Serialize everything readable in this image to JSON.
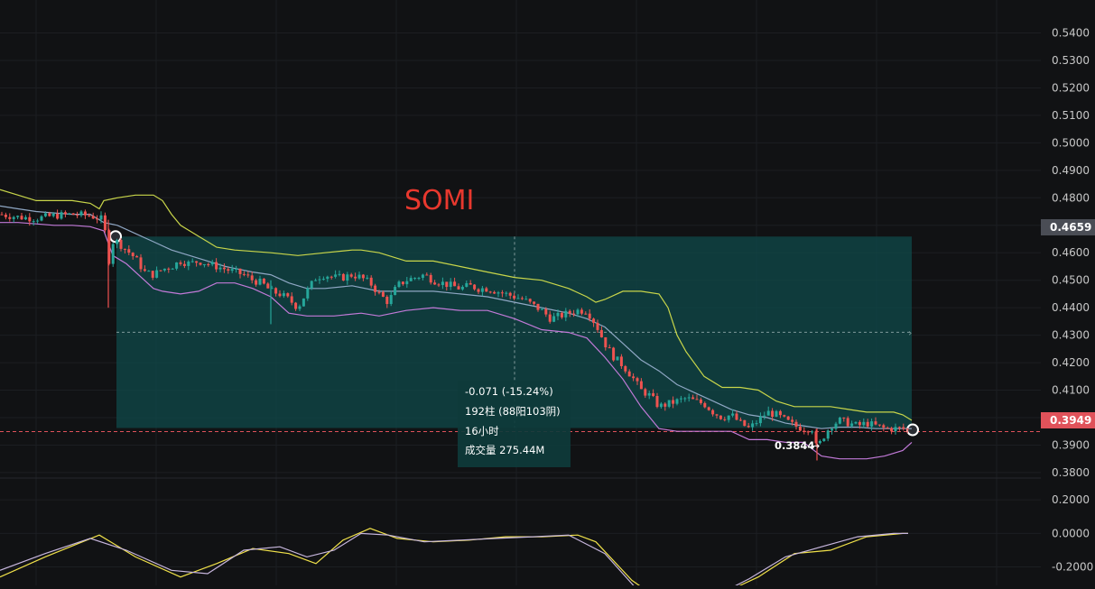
{
  "chart_data": [
    {
      "type": "candlestick",
      "title": "SOMI",
      "ylim": [
        0.378,
        0.552
      ],
      "y_ticks": [
        "0.5400",
        "0.5300",
        "0.5200",
        "0.5100",
        "0.5000",
        "0.4900",
        "0.4800",
        "0.4700",
        "0.4600",
        "0.4500",
        "0.4400",
        "0.4300",
        "0.4200",
        "0.4100",
        "0.4000",
        "0.3900",
        "0.3800"
      ],
      "current_price": "0.3949",
      "measure_top_price": "0.4659",
      "low_label": "0.3844",
      "measurement": {
        "change": "-0.071 (-15.24%)",
        "bars": "192柱 (88阳103阴)",
        "duration": "16小时",
        "volume": "成交量 275.44M"
      },
      "colors": {
        "up": "#26a69a",
        "down": "#ef5350",
        "upper_band": "#c9d64a",
        "middle_band": "#8fa7c4",
        "lower_band": "#c27ad8",
        "measure_fill": "#0f4a49",
        "current_line": "#e0525a"
      },
      "price_path": [
        [
          0,
          0.474
        ],
        [
          20,
          0.473
        ],
        [
          40,
          0.4725
        ],
        [
          60,
          0.4735
        ],
        [
          80,
          0.474
        ],
        [
          100,
          0.4735
        ],
        [
          115,
          0.472
        ],
        [
          120,
          0.456
        ],
        [
          125,
          0.464
        ],
        [
          130,
          0.464
        ],
        [
          140,
          0.461
        ],
        [
          150,
          0.458
        ],
        [
          160,
          0.453
        ],
        [
          170,
          0.452
        ],
        [
          180,
          0.454
        ],
        [
          190,
          0.455
        ],
        [
          200,
          0.457
        ],
        [
          210,
          0.456
        ],
        [
          220,
          0.457
        ],
        [
          230,
          0.456
        ],
        [
          240,
          0.455
        ],
        [
          250,
          0.454
        ],
        [
          260,
          0.453
        ],
        [
          270,
          0.452
        ],
        [
          280,
          0.45
        ],
        [
          290,
          0.449
        ],
        [
          300,
          0.446
        ],
        [
          310,
          0.445
        ],
        [
          320,
          0.443
        ],
        [
          330,
          0.44
        ],
        [
          340,
          0.446
        ],
        [
          350,
          0.451
        ],
        [
          360,
          0.452
        ],
        [
          370,
          0.451
        ],
        [
          380,
          0.451
        ],
        [
          390,
          0.452
        ],
        [
          400,
          0.451
        ],
        [
          410,
          0.449
        ],
        [
          420,
          0.445
        ],
        [
          430,
          0.442
        ],
        [
          440,
          0.448
        ],
        [
          450,
          0.45
        ],
        [
          460,
          0.451
        ],
        [
          470,
          0.452
        ],
        [
          480,
          0.45
        ],
        [
          490,
          0.449
        ],
        [
          500,
          0.448
        ],
        [
          510,
          0.447
        ],
        [
          520,
          0.448
        ],
        [
          530,
          0.447
        ],
        [
          540,
          0.447
        ],
        [
          550,
          0.446
        ],
        [
          560,
          0.445
        ],
        [
          570,
          0.444
        ],
        [
          580,
          0.443
        ],
        [
          590,
          0.441
        ],
        [
          600,
          0.439
        ],
        [
          610,
          0.436
        ],
        [
          620,
          0.437
        ],
        [
          630,
          0.438
        ],
        [
          640,
          0.439
        ],
        [
          650,
          0.439
        ],
        [
          660,
          0.434
        ],
        [
          670,
          0.427
        ],
        [
          680,
          0.422
        ],
        [
          690,
          0.419
        ],
        [
          700,
          0.415
        ],
        [
          710,
          0.41
        ],
        [
          720,
          0.408
        ],
        [
          730,
          0.404
        ],
        [
          740,
          0.405
        ],
        [
          750,
          0.406
        ],
        [
          760,
          0.407
        ],
        [
          770,
          0.406
        ],
        [
          780,
          0.405
        ],
        [
          790,
          0.402
        ],
        [
          800,
          0.4
        ],
        [
          810,
          0.401
        ],
        [
          820,
          0.398
        ],
        [
          830,
          0.396
        ],
        [
          840,
          0.399
        ],
        [
          850,
          0.402
        ],
        [
          860,
          0.401
        ],
        [
          870,
          0.399
        ],
        [
          880,
          0.397
        ],
        [
          890,
          0.396
        ],
        [
          900,
          0.396
        ],
        [
          905,
          0.388
        ],
        [
          910,
          0.392
        ],
        [
          920,
          0.397
        ],
        [
          930,
          0.399
        ],
        [
          940,
          0.398
        ],
        [
          950,
          0.397
        ],
        [
          960,
          0.398
        ],
        [
          970,
          0.397
        ],
        [
          980,
          0.396
        ],
        [
          990,
          0.396
        ],
        [
          1000,
          0.396
        ],
        [
          1010,
          0.3949
        ]
      ],
      "upper_band": [
        [
          0,
          0.483
        ],
        [
          20,
          0.481
        ],
        [
          40,
          0.479
        ],
        [
          60,
          0.479
        ],
        [
          80,
          0.479
        ],
        [
          100,
          0.478
        ],
        [
          110,
          0.476
        ],
        [
          115,
          0.479
        ],
        [
          130,
          0.48
        ],
        [
          150,
          0.481
        ],
        [
          170,
          0.481
        ],
        [
          180,
          0.479
        ],
        [
          190,
          0.474
        ],
        [
          200,
          0.47
        ],
        [
          210,
          0.468
        ],
        [
          220,
          0.466
        ],
        [
          230,
          0.464
        ],
        [
          240,
          0.462
        ],
        [
          260,
          0.461
        ],
        [
          300,
          0.46
        ],
        [
          330,
          0.459
        ],
        [
          360,
          0.46
        ],
        [
          390,
          0.461
        ],
        [
          400,
          0.461
        ],
        [
          420,
          0.46
        ],
        [
          450,
          0.457
        ],
        [
          480,
          0.457
        ],
        [
          510,
          0.455
        ],
        [
          540,
          0.453
        ],
        [
          570,
          0.451
        ],
        [
          600,
          0.45
        ],
        [
          630,
          0.447
        ],
        [
          650,
          0.444
        ],
        [
          660,
          0.442
        ],
        [
          670,
          0.443
        ],
        [
          690,
          0.446
        ],
        [
          710,
          0.446
        ],
        [
          730,
          0.445
        ],
        [
          740,
          0.44
        ],
        [
          750,
          0.43
        ],
        [
          760,
          0.424
        ],
        [
          780,
          0.415
        ],
        [
          800,
          0.411
        ],
        [
          820,
          0.411
        ],
        [
          840,
          0.41
        ],
        [
          860,
          0.406
        ],
        [
          880,
          0.404
        ],
        [
          900,
          0.404
        ],
        [
          920,
          0.404
        ],
        [
          940,
          0.403
        ],
        [
          960,
          0.402
        ],
        [
          990,
          0.402
        ],
        [
          1000,
          0.401
        ],
        [
          1010,
          0.399
        ]
      ],
      "middle_band": [
        [
          0,
          0.477
        ],
        [
          20,
          0.476
        ],
        [
          40,
          0.475
        ],
        [
          60,
          0.4745
        ],
        [
          80,
          0.474
        ],
        [
          100,
          0.474
        ],
        [
          115,
          0.471
        ],
        [
          130,
          0.47
        ],
        [
          150,
          0.467
        ],
        [
          170,
          0.464
        ],
        [
          190,
          0.461
        ],
        [
          210,
          0.459
        ],
        [
          230,
          0.457
        ],
        [
          250,
          0.455
        ],
        [
          280,
          0.453
        ],
        [
          300,
          0.452
        ],
        [
          320,
          0.449
        ],
        [
          340,
          0.447
        ],
        [
          360,
          0.447
        ],
        [
          390,
          0.448
        ],
        [
          420,
          0.446
        ],
        [
          450,
          0.446
        ],
        [
          480,
          0.446
        ],
        [
          510,
          0.445
        ],
        [
          540,
          0.444
        ],
        [
          570,
          0.442
        ],
        [
          600,
          0.44
        ],
        [
          630,
          0.438
        ],
        [
          650,
          0.436
        ],
        [
          670,
          0.433
        ],
        [
          690,
          0.427
        ],
        [
          710,
          0.421
        ],
        [
          730,
          0.417
        ],
        [
          750,
          0.412
        ],
        [
          770,
          0.409
        ],
        [
          790,
          0.406
        ],
        [
          810,
          0.403
        ],
        [
          830,
          0.401
        ],
        [
          850,
          0.4
        ],
        [
          870,
          0.398
        ],
        [
          890,
          0.397
        ],
        [
          910,
          0.396
        ],
        [
          930,
          0.3965
        ],
        [
          950,
          0.3965
        ],
        [
          970,
          0.396
        ],
        [
          990,
          0.396
        ],
        [
          1010,
          0.396
        ]
      ],
      "lower_band": [
        [
          0,
          0.471
        ],
        [
          20,
          0.471
        ],
        [
          40,
          0.4705
        ],
        [
          60,
          0.47
        ],
        [
          80,
          0.47
        ],
        [
          100,
          0.4695
        ],
        [
          115,
          0.468
        ],
        [
          125,
          0.459
        ],
        [
          140,
          0.456
        ],
        [
          160,
          0.45
        ],
        [
          170,
          0.447
        ],
        [
          180,
          0.446
        ],
        [
          200,
          0.445
        ],
        [
          220,
          0.446
        ],
        [
          240,
          0.449
        ],
        [
          260,
          0.449
        ],
        [
          280,
          0.447
        ],
        [
          300,
          0.444
        ],
        [
          320,
          0.438
        ],
        [
          340,
          0.437
        ],
        [
          370,
          0.437
        ],
        [
          400,
          0.438
        ],
        [
          420,
          0.437
        ],
        [
          450,
          0.439
        ],
        [
          480,
          0.44
        ],
        [
          510,
          0.439
        ],
        [
          540,
          0.439
        ],
        [
          570,
          0.436
        ],
        [
          600,
          0.432
        ],
        [
          630,
          0.431
        ],
        [
          650,
          0.429
        ],
        [
          670,
          0.422
        ],
        [
          690,
          0.414
        ],
        [
          710,
          0.404
        ],
        [
          730,
          0.396
        ],
        [
          750,
          0.395
        ],
        [
          770,
          0.395
        ],
        [
          790,
          0.395
        ],
        [
          810,
          0.395
        ],
        [
          830,
          0.392
        ],
        [
          850,
          0.392
        ],
        [
          870,
          0.391
        ],
        [
          890,
          0.391
        ],
        [
          910,
          0.386
        ],
        [
          930,
          0.385
        ],
        [
          960,
          0.385
        ],
        [
          980,
          0.386
        ],
        [
          1000,
          0.388
        ],
        [
          1010,
          0.391
        ]
      ]
    },
    {
      "type": "line",
      "ylim": [
        -0.31,
        0.33
      ],
      "y_ticks": [
        "0.2000",
        "0.0000",
        "-0.2000"
      ],
      "series": [
        {
          "color": "#f0e14a",
          "points": [
            [
              0,
              -0.26
            ],
            [
              50,
              -0.14
            ],
            [
              110,
              -0.01
            ],
            [
              150,
              -0.14
            ],
            [
              200,
              -0.26
            ],
            [
              240,
              -0.18
            ],
            [
              280,
              -0.09
            ],
            [
              320,
              -0.12
            ],
            [
              350,
              -0.18
            ],
            [
              380,
              -0.04
            ],
            [
              410,
              0.03
            ],
            [
              440,
              -0.03
            ],
            [
              480,
              -0.05
            ],
            [
              520,
              -0.04
            ],
            [
              560,
              -0.02
            ],
            [
              600,
              -0.02
            ],
            [
              640,
              -0.01
            ],
            [
              660,
              -0.05
            ],
            [
              700,
              -0.28
            ],
            [
              740,
              -0.43
            ],
            [
              760,
              -0.46
            ],
            [
              800,
              -0.36
            ],
            [
              840,
              -0.26
            ],
            [
              880,
              -0.12
            ],
            [
              920,
              -0.1
            ],
            [
              960,
              -0.02
            ],
            [
              1000,
              0.0
            ],
            [
              1006,
              0.0
            ]
          ]
        },
        {
          "color": "#c7b6dd",
          "points": [
            [
              0,
              -0.22
            ],
            [
              50,
              -0.12
            ],
            [
              100,
              -0.03
            ],
            [
              140,
              -0.1
            ],
            [
              190,
              -0.22
            ],
            [
              230,
              -0.24
            ],
            [
              270,
              -0.1
            ],
            [
              310,
              -0.08
            ],
            [
              340,
              -0.14
            ],
            [
              370,
              -0.1
            ],
            [
              400,
              0.0
            ],
            [
              430,
              -0.01
            ],
            [
              470,
              -0.05
            ],
            [
              510,
              -0.04
            ],
            [
              550,
              -0.03
            ],
            [
              590,
              -0.02
            ],
            [
              630,
              -0.01
            ],
            [
              670,
              -0.12
            ],
            [
              710,
              -0.36
            ],
            [
              750,
              -0.48
            ],
            [
              790,
              -0.38
            ],
            [
              830,
              -0.27
            ],
            [
              870,
              -0.14
            ],
            [
              910,
              -0.08
            ],
            [
              950,
              -0.02
            ],
            [
              990,
              0.0
            ],
            [
              1006,
              0.0
            ]
          ]
        }
      ]
    }
  ]
}
